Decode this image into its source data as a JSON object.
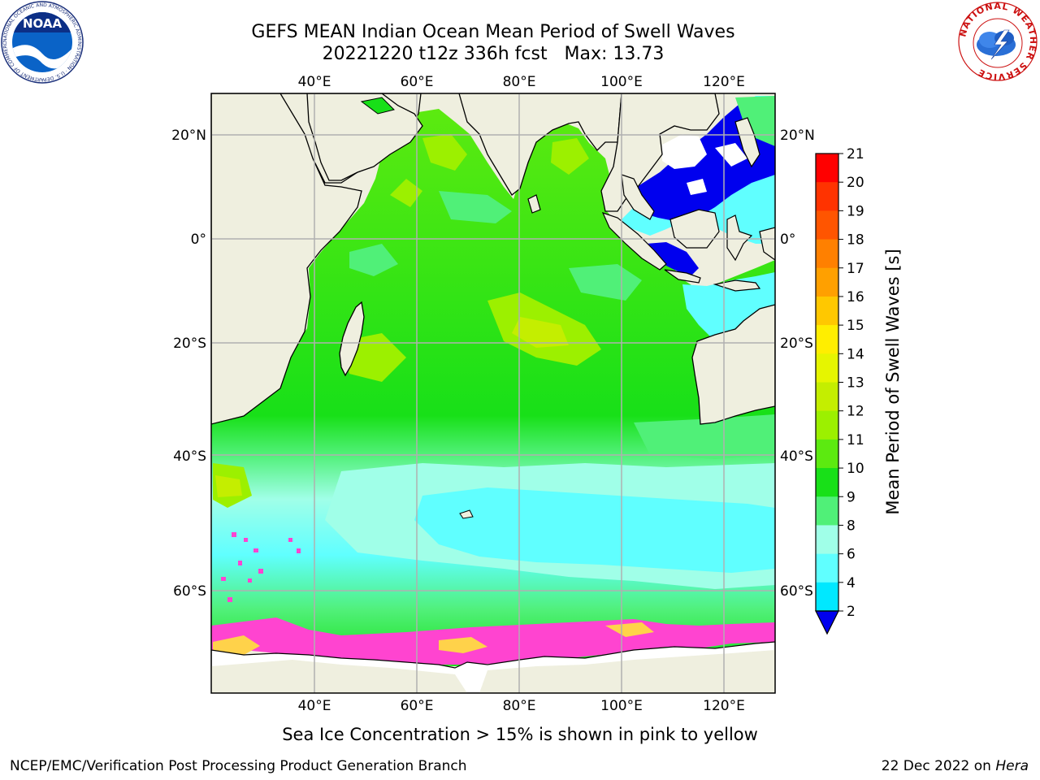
{
  "header": {
    "title_line1": "GEFS MEAN Indian Ocean Mean Period of Swell Waves",
    "title_line2": "20221220 t12z 336h fcst   Max: 13.73"
  },
  "logos": {
    "noaa": {
      "text": "NOAA",
      "ring_text": "NATIONAL OCEANIC AND ATMOSPHERIC ADMINISTRATION · U.S. DEPARTMENT OF COMMERCE"
    },
    "nws": {
      "ring_text": "NATIONAL WEATHER SERVICE"
    }
  },
  "map": {
    "lon_ticks": [
      "40°E",
      "60°E",
      "80°E",
      "100°E",
      "120°E"
    ],
    "lat_ticks_left": [
      "20°N",
      "0°",
      "20°S",
      "40°S",
      "60°S"
    ],
    "lat_ticks_right": [
      "20°N",
      "0°",
      "20°S",
      "40°S",
      "60°S"
    ],
    "lon_values": [
      40,
      60,
      80,
      100,
      120
    ],
    "lat_values": [
      20,
      0,
      -20,
      -40,
      -60
    ],
    "lon_range": [
      20,
      130
    ],
    "lat_range": [
      -70,
      28
    ],
    "colors": {
      "land": "#efefdf",
      "grid": "#b0b0b0",
      "coast": "#000000",
      "ice_pink": "#ff44d0",
      "ice_yellow": "#ffd24a"
    }
  },
  "colorbar": {
    "title": "Mean Period of Swell Waves [s]",
    "labels": [
      "21",
      "20",
      "19",
      "18",
      "17",
      "16",
      "15",
      "14",
      "13",
      "12",
      "11",
      "10",
      "9",
      "8",
      "6",
      "4",
      "2"
    ],
    "level_colors": [
      "#ff0000",
      "#ff3300",
      "#ff5500",
      "#ff8000",
      "#ffa000",
      "#ffc800",
      "#ffee00",
      "#e6f500",
      "#c4ee00",
      "#9cf000",
      "#5cea10",
      "#18e018",
      "#50f078",
      "#a0ffe8",
      "#60ffff",
      "#00e8ff",
      "#00a8ff",
      "#0000ee"
    ]
  },
  "footer": {
    "ice_note": "Sea Ice Concentration > 15% is shown in pink to yellow",
    "branch": "NCEP/EMC/Verification Post Processing Product Generation Branch",
    "date": "22 Dec 2022 on ",
    "host": "Hera"
  }
}
